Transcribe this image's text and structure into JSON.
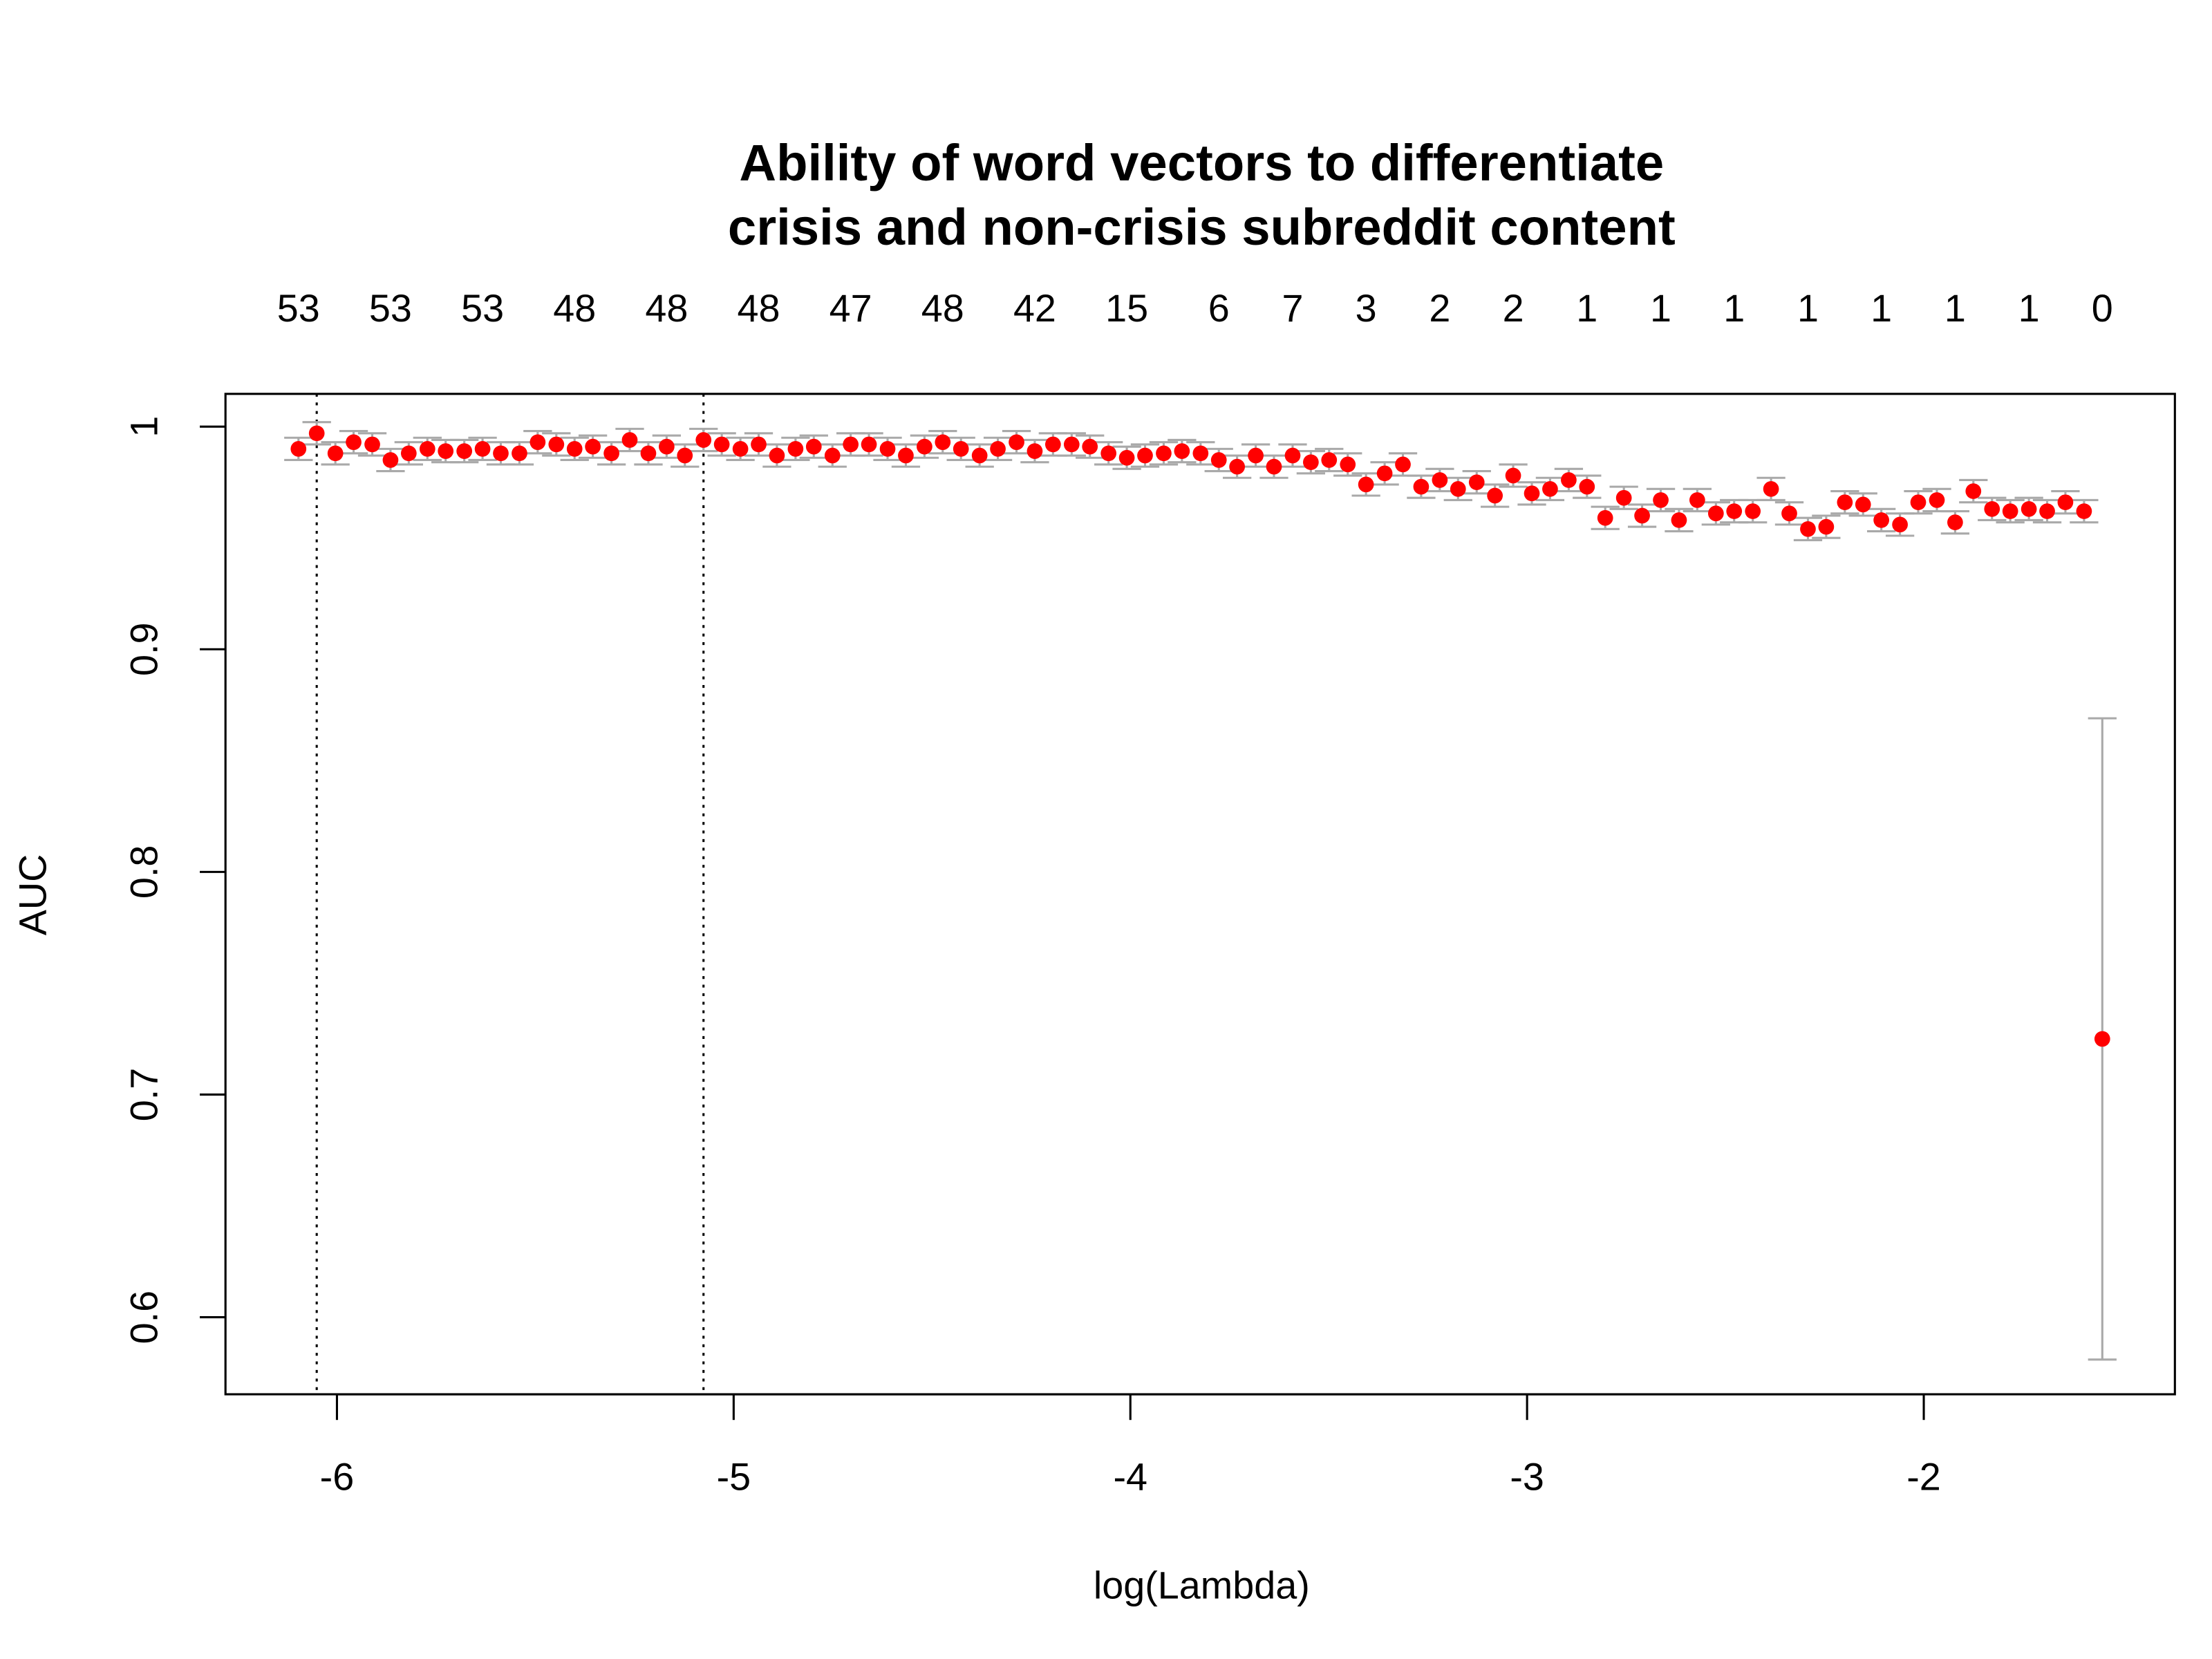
{
  "chart_data": {
    "type": "errorbar-scatter",
    "title": [
      "Ability of word vectors to differentiate",
      "crisis and non-crisis subreddit content"
    ],
    "x_label": "log(Lambda)",
    "y_label": "AUC",
    "xlim": [
      -6.281,
      -1.367
    ],
    "ylim": [
      0.5654,
      1.0147
    ],
    "xticks": [
      -6,
      -5,
      -4,
      -3,
      -2
    ],
    "yticks": [
      0.6,
      0.7,
      0.8,
      0.9,
      1.0
    ],
    "top_ticks": [
      {
        "value": -6.097,
        "label": "53"
      },
      {
        "value": -5.865,
        "label": "53"
      },
      {
        "value": -5.633,
        "label": "53"
      },
      {
        "value": -5.401,
        "label": "48"
      },
      {
        "value": -5.169,
        "label": "48"
      },
      {
        "value": -4.937,
        "label": "48"
      },
      {
        "value": -4.705,
        "label": "47"
      },
      {
        "value": -4.473,
        "label": "48"
      },
      {
        "value": -4.241,
        "label": "42"
      },
      {
        "value": -4.009,
        "label": "15"
      },
      {
        "value": -3.777,
        "label": "6"
      },
      {
        "value": -3.591,
        "label": "7"
      },
      {
        "value": -3.406,
        "label": "3"
      },
      {
        "value": -3.22,
        "label": "2"
      },
      {
        "value": -3.035,
        "label": "2"
      },
      {
        "value": -2.849,
        "label": "1"
      },
      {
        "value": -2.663,
        "label": "1"
      },
      {
        "value": -2.478,
        "label": "1"
      },
      {
        "value": -2.292,
        "label": "1"
      },
      {
        "value": -2.107,
        "label": "1"
      },
      {
        "value": -1.921,
        "label": "1"
      },
      {
        "value": -1.735,
        "label": "1"
      },
      {
        "value": -1.55,
        "label": "0"
      }
    ],
    "vlines": [
      -6.051,
      -5.076
    ],
    "point_color": "#ff0000",
    "errorbar_color": "#a9a9a9",
    "x": [
      -6.097,
      -6.051,
      -6.004,
      -5.958,
      -5.911,
      -5.865,
      -5.819,
      -5.772,
      -5.726,
      -5.679,
      -5.633,
      -5.587,
      -5.54,
      -5.494,
      -5.447,
      -5.401,
      -5.355,
      -5.308,
      -5.262,
      -5.215,
      -5.169,
      -5.123,
      -5.076,
      -5.03,
      -4.983,
      -4.937,
      -4.891,
      -4.844,
      -4.798,
      -4.751,
      -4.705,
      -4.659,
      -4.612,
      -4.566,
      -4.519,
      -4.473,
      -4.427,
      -4.38,
      -4.334,
      -4.287,
      -4.241,
      -4.195,
      -4.148,
      -4.102,
      -4.055,
      -4.009,
      -3.963,
      -3.916,
      -3.87,
      -3.823,
      -3.777,
      -3.731,
      -3.684,
      -3.638,
      -3.591,
      -3.545,
      -3.499,
      -3.452,
      -3.406,
      -3.359,
      -3.313,
      -3.267,
      -3.22,
      -3.174,
      -3.127,
      -3.081,
      -3.035,
      -2.988,
      -2.942,
      -2.895,
      -2.849,
      -2.803,
      -2.756,
      -2.71,
      -2.663,
      -2.617,
      -2.571,
      -2.524,
      -2.478,
      -2.431,
      -2.385,
      -2.339,
      -2.292,
      -2.246,
      -2.199,
      -2.153,
      -2.107,
      -2.06,
      -2.014,
      -1.967,
      -1.921,
      -1.875,
      -1.828,
      -1.782,
      -1.735,
      -1.689,
      -1.643,
      -1.596,
      -1.55
    ],
    "values": [
      0.99,
      0.997,
      0.988,
      0.993,
      0.992,
      0.985,
      0.988,
      0.99,
      0.989,
      0.989,
      0.99,
      0.988,
      0.988,
      0.993,
      0.992,
      0.99,
      0.991,
      0.988,
      0.994,
      0.988,
      0.991,
      0.987,
      0.994,
      0.992,
      0.99,
      0.992,
      0.987,
      0.99,
      0.991,
      0.987,
      0.992,
      0.992,
      0.99,
      0.987,
      0.991,
      0.993,
      0.99,
      0.987,
      0.99,
      0.993,
      0.989,
      0.992,
      0.992,
      0.991,
      0.988,
      0.986,
      0.987,
      0.988,
      0.989,
      0.988,
      0.985,
      0.982,
      0.987,
      0.982,
      0.987,
      0.984,
      0.985,
      0.983,
      0.974,
      0.979,
      0.983,
      0.973,
      0.976,
      0.972,
      0.975,
      0.969,
      0.978,
      0.97,
      0.972,
      0.976,
      0.973,
      0.959,
      0.968,
      0.96,
      0.967,
      0.958,
      0.967,
      0.961,
      0.962,
      0.962,
      0.972,
      0.961,
      0.954,
      0.955,
      0.966,
      0.965,
      0.958,
      0.956,
      0.966,
      0.967,
      0.957,
      0.971,
      0.963,
      0.962,
      0.963,
      0.962,
      0.966,
      0.962,
      0.725
    ],
    "errors": [
      0.005,
      0.005,
      0.005,
      0.005,
      0.005,
      0.005,
      0.005,
      0.005,
      0.005,
      0.005,
      0.005,
      0.005,
      0.005,
      0.005,
      0.005,
      0.005,
      0.005,
      0.005,
      0.005,
      0.005,
      0.005,
      0.005,
      0.005,
      0.005,
      0.005,
      0.005,
      0.005,
      0.005,
      0.005,
      0.005,
      0.005,
      0.005,
      0.005,
      0.005,
      0.005,
      0.005,
      0.005,
      0.005,
      0.005,
      0.005,
      0.005,
      0.005,
      0.005,
      0.005,
      0.005,
      0.005,
      0.005,
      0.005,
      0.005,
      0.005,
      0.005,
      0.005,
      0.005,
      0.005,
      0.005,
      0.005,
      0.005,
      0.005,
      0.005,
      0.005,
      0.005,
      0.005,
      0.005,
      0.005,
      0.005,
      0.005,
      0.005,
      0.005,
      0.005,
      0.005,
      0.005,
      0.005,
      0.005,
      0.005,
      0.005,
      0.005,
      0.005,
      0.005,
      0.005,
      0.005,
      0.005,
      0.005,
      0.005,
      0.005,
      0.005,
      0.005,
      0.005,
      0.005,
      0.005,
      0.005,
      0.005,
      0.005,
      0.005,
      0.005,
      0.005,
      0.005,
      0.005,
      0.005,
      0.144
    ]
  }
}
